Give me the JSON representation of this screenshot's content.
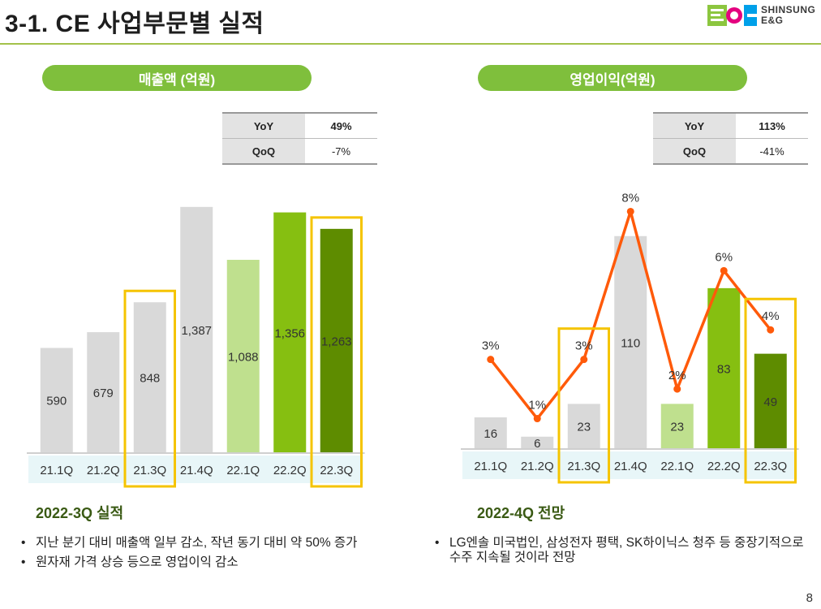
{
  "title": "3-1. CE 사업부문별 실적",
  "logo": {
    "line1": "SHINSUNG",
    "line2": "E&G",
    "mark": "E&G"
  },
  "colors": {
    "gray": "#d9d9d9",
    "light_green": "#bfe08e",
    "green": "#86bf11",
    "dark_green": "#5e8c00",
    "line": "#ff5a0a",
    "highlight": "#f5c400",
    "pill": "#7fbf3c"
  },
  "left": {
    "pill_label": "매출액 (억원)",
    "kpi": [
      {
        "key": "YoY",
        "value": "49%"
      },
      {
        "key": "QoQ",
        "value": "-7%"
      }
    ],
    "section_title": "2022-3Q 실적",
    "bullets": [
      "지난 분기 대비 매출액 일부 감소, 작년 동기 대비 약 50% 증가",
      "원자재 가격 상승 등으로 영업이익 감소"
    ]
  },
  "right": {
    "pill_label": "영업이익(억원)",
    "kpi": [
      {
        "key": "YoY",
        "value": "113%"
      },
      {
        "key": "QoQ",
        "value": "-41%"
      }
    ],
    "section_title": "2022-4Q 전망",
    "bullets": [
      "LG엔솔 미국법인, 삼성전자 평택, SK하이닉스 청주 등 중장기적으로 수주 지속될 것이라 전망"
    ]
  },
  "page_number": "8",
  "chart_data": [
    {
      "type": "bar",
      "categories": [
        "21.1Q",
        "21.2Q",
        "21.3Q",
        "21.4Q",
        "22.1Q",
        "22.2Q",
        "22.3Q"
      ],
      "values": [
        590,
        679,
        848,
        1387,
        1088,
        1356,
        1263
      ],
      "value_labels": [
        "590",
        "679",
        "848",
        "1,387",
        "1,088",
        "1,356",
        "1,263"
      ],
      "bar_colors": [
        "gray",
        "gray",
        "gray",
        "gray",
        "light_green",
        "green",
        "dark_green"
      ],
      "ylim": [
        0,
        1400
      ],
      "highlighted_categories": [
        "21.3Q",
        "22.3Q"
      ],
      "legend": "none",
      "grid": false
    },
    {
      "type": "bar",
      "categories": [
        "21.1Q",
        "21.2Q",
        "21.3Q",
        "21.4Q",
        "22.1Q",
        "22.2Q",
        "22.3Q"
      ],
      "values": [
        16,
        6,
        23,
        110,
        23,
        83,
        49
      ],
      "value_labels": [
        "16",
        "6",
        "23",
        "110",
        "23",
        "83",
        "49"
      ],
      "bar_colors": [
        "gray",
        "gray",
        "gray",
        "gray",
        "light_green",
        "green",
        "dark_green"
      ],
      "ylim": [
        0,
        120
      ],
      "line_values": [
        3,
        1,
        3,
        8,
        2,
        6,
        4
      ],
      "line_labels": [
        "3%",
        "1%",
        "3%",
        "8%",
        "2%",
        "6%",
        "4%"
      ],
      "line_ylim": [
        0,
        9
      ],
      "highlighted_categories": [
        "21.3Q",
        "22.3Q"
      ],
      "legend": "none",
      "grid": false
    }
  ]
}
